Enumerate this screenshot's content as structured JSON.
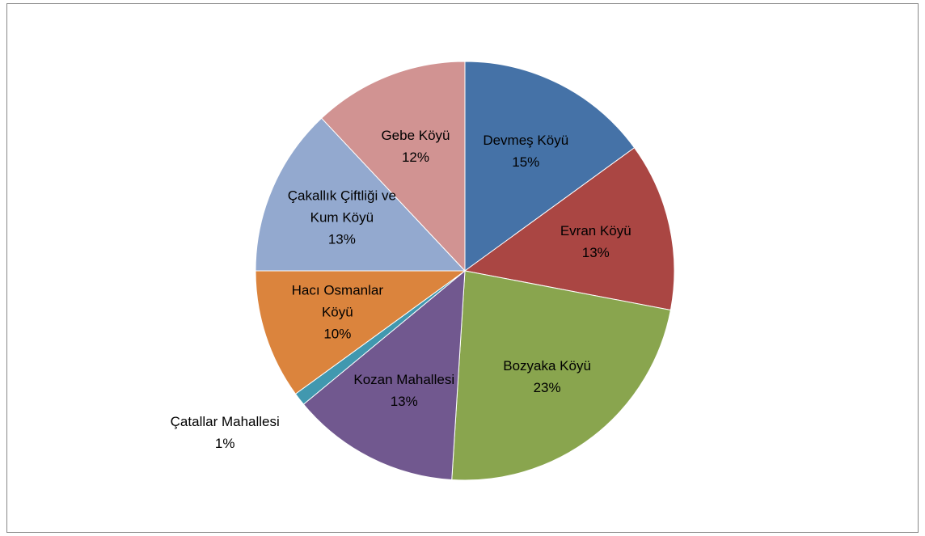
{
  "chart_data": {
    "type": "pie",
    "categories": [
      "Devmeş Köyü",
      "Evran Köyü",
      "Bozyaka Köyü",
      "Kozan Mahallesi",
      "Çatallar Mahallesi",
      "Hacı Osmanlar Köyü",
      "Çakallık Çiftliği ve Kum Köyü",
      "Gebe Köyü"
    ],
    "values": [
      15,
      13,
      23,
      13,
      1,
      10,
      13,
      12
    ],
    "value_labels": [
      "15%",
      "13%",
      "23%",
      "13%",
      "1%",
      "10%",
      "13%",
      "12%"
    ],
    "colors": [
      "#4572a7",
      "#aa4643",
      "#89a54e",
      "#71588f",
      "#4198af",
      "#db843d",
      "#93a9cf",
      "#d19392"
    ]
  }
}
